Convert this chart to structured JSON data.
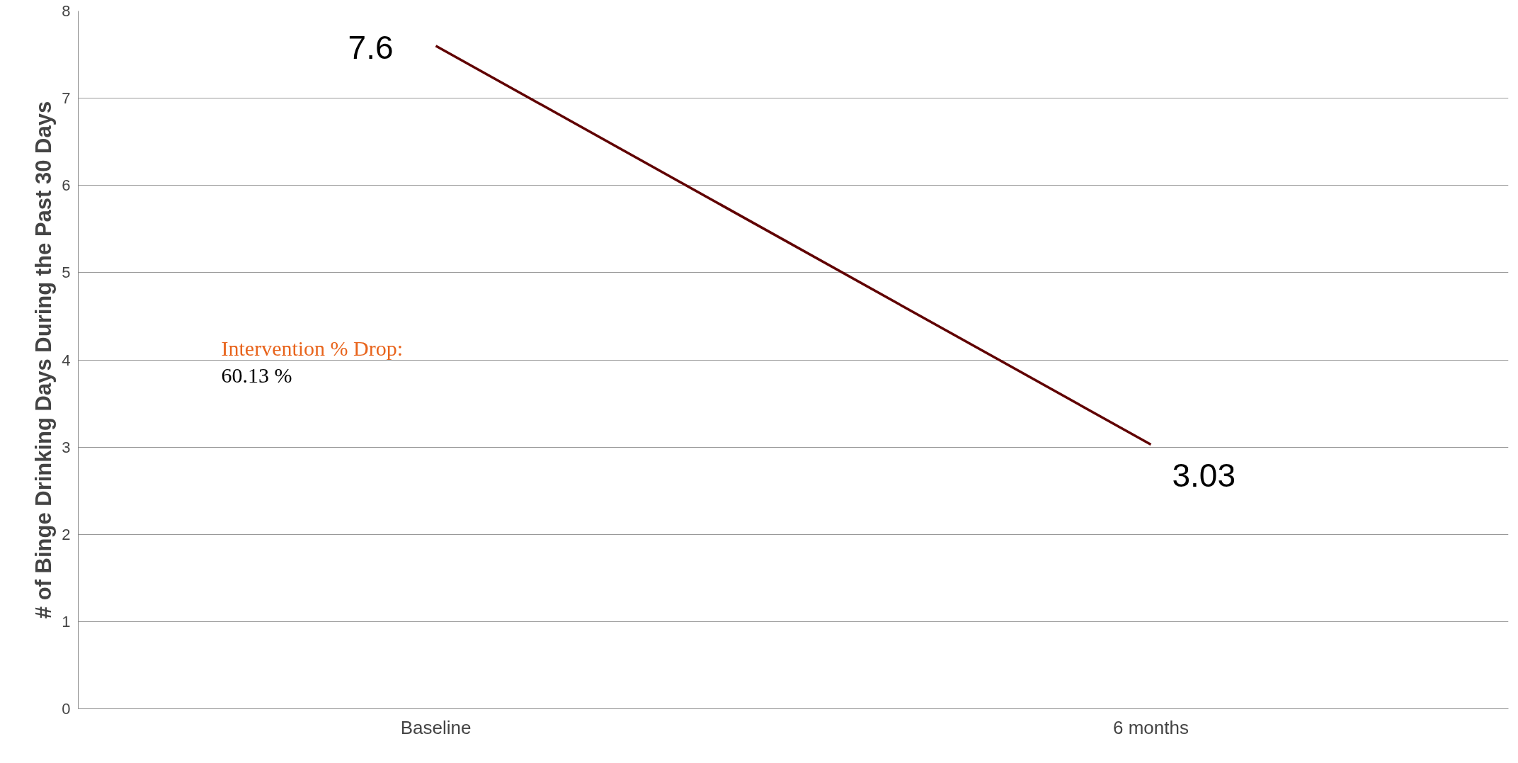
{
  "chart_data": {
    "type": "line",
    "ylabel": "# of Binge Drinking Days During the Past 30 Days",
    "categories": [
      "Baseline",
      "6 months"
    ],
    "series": [
      {
        "color": "#600000",
        "values": [
          7.6,
          3.03
        ]
      }
    ],
    "ylim": [
      0,
      8
    ],
    "yticks": [
      0,
      1,
      2,
      3,
      4,
      5,
      6,
      7,
      8
    ],
    "grid": "y",
    "data_labels": true,
    "marker": "none",
    "line_style": "solid",
    "annotations": [
      "Intervention % Drop:",
      "60.13 %"
    ]
  }
}
